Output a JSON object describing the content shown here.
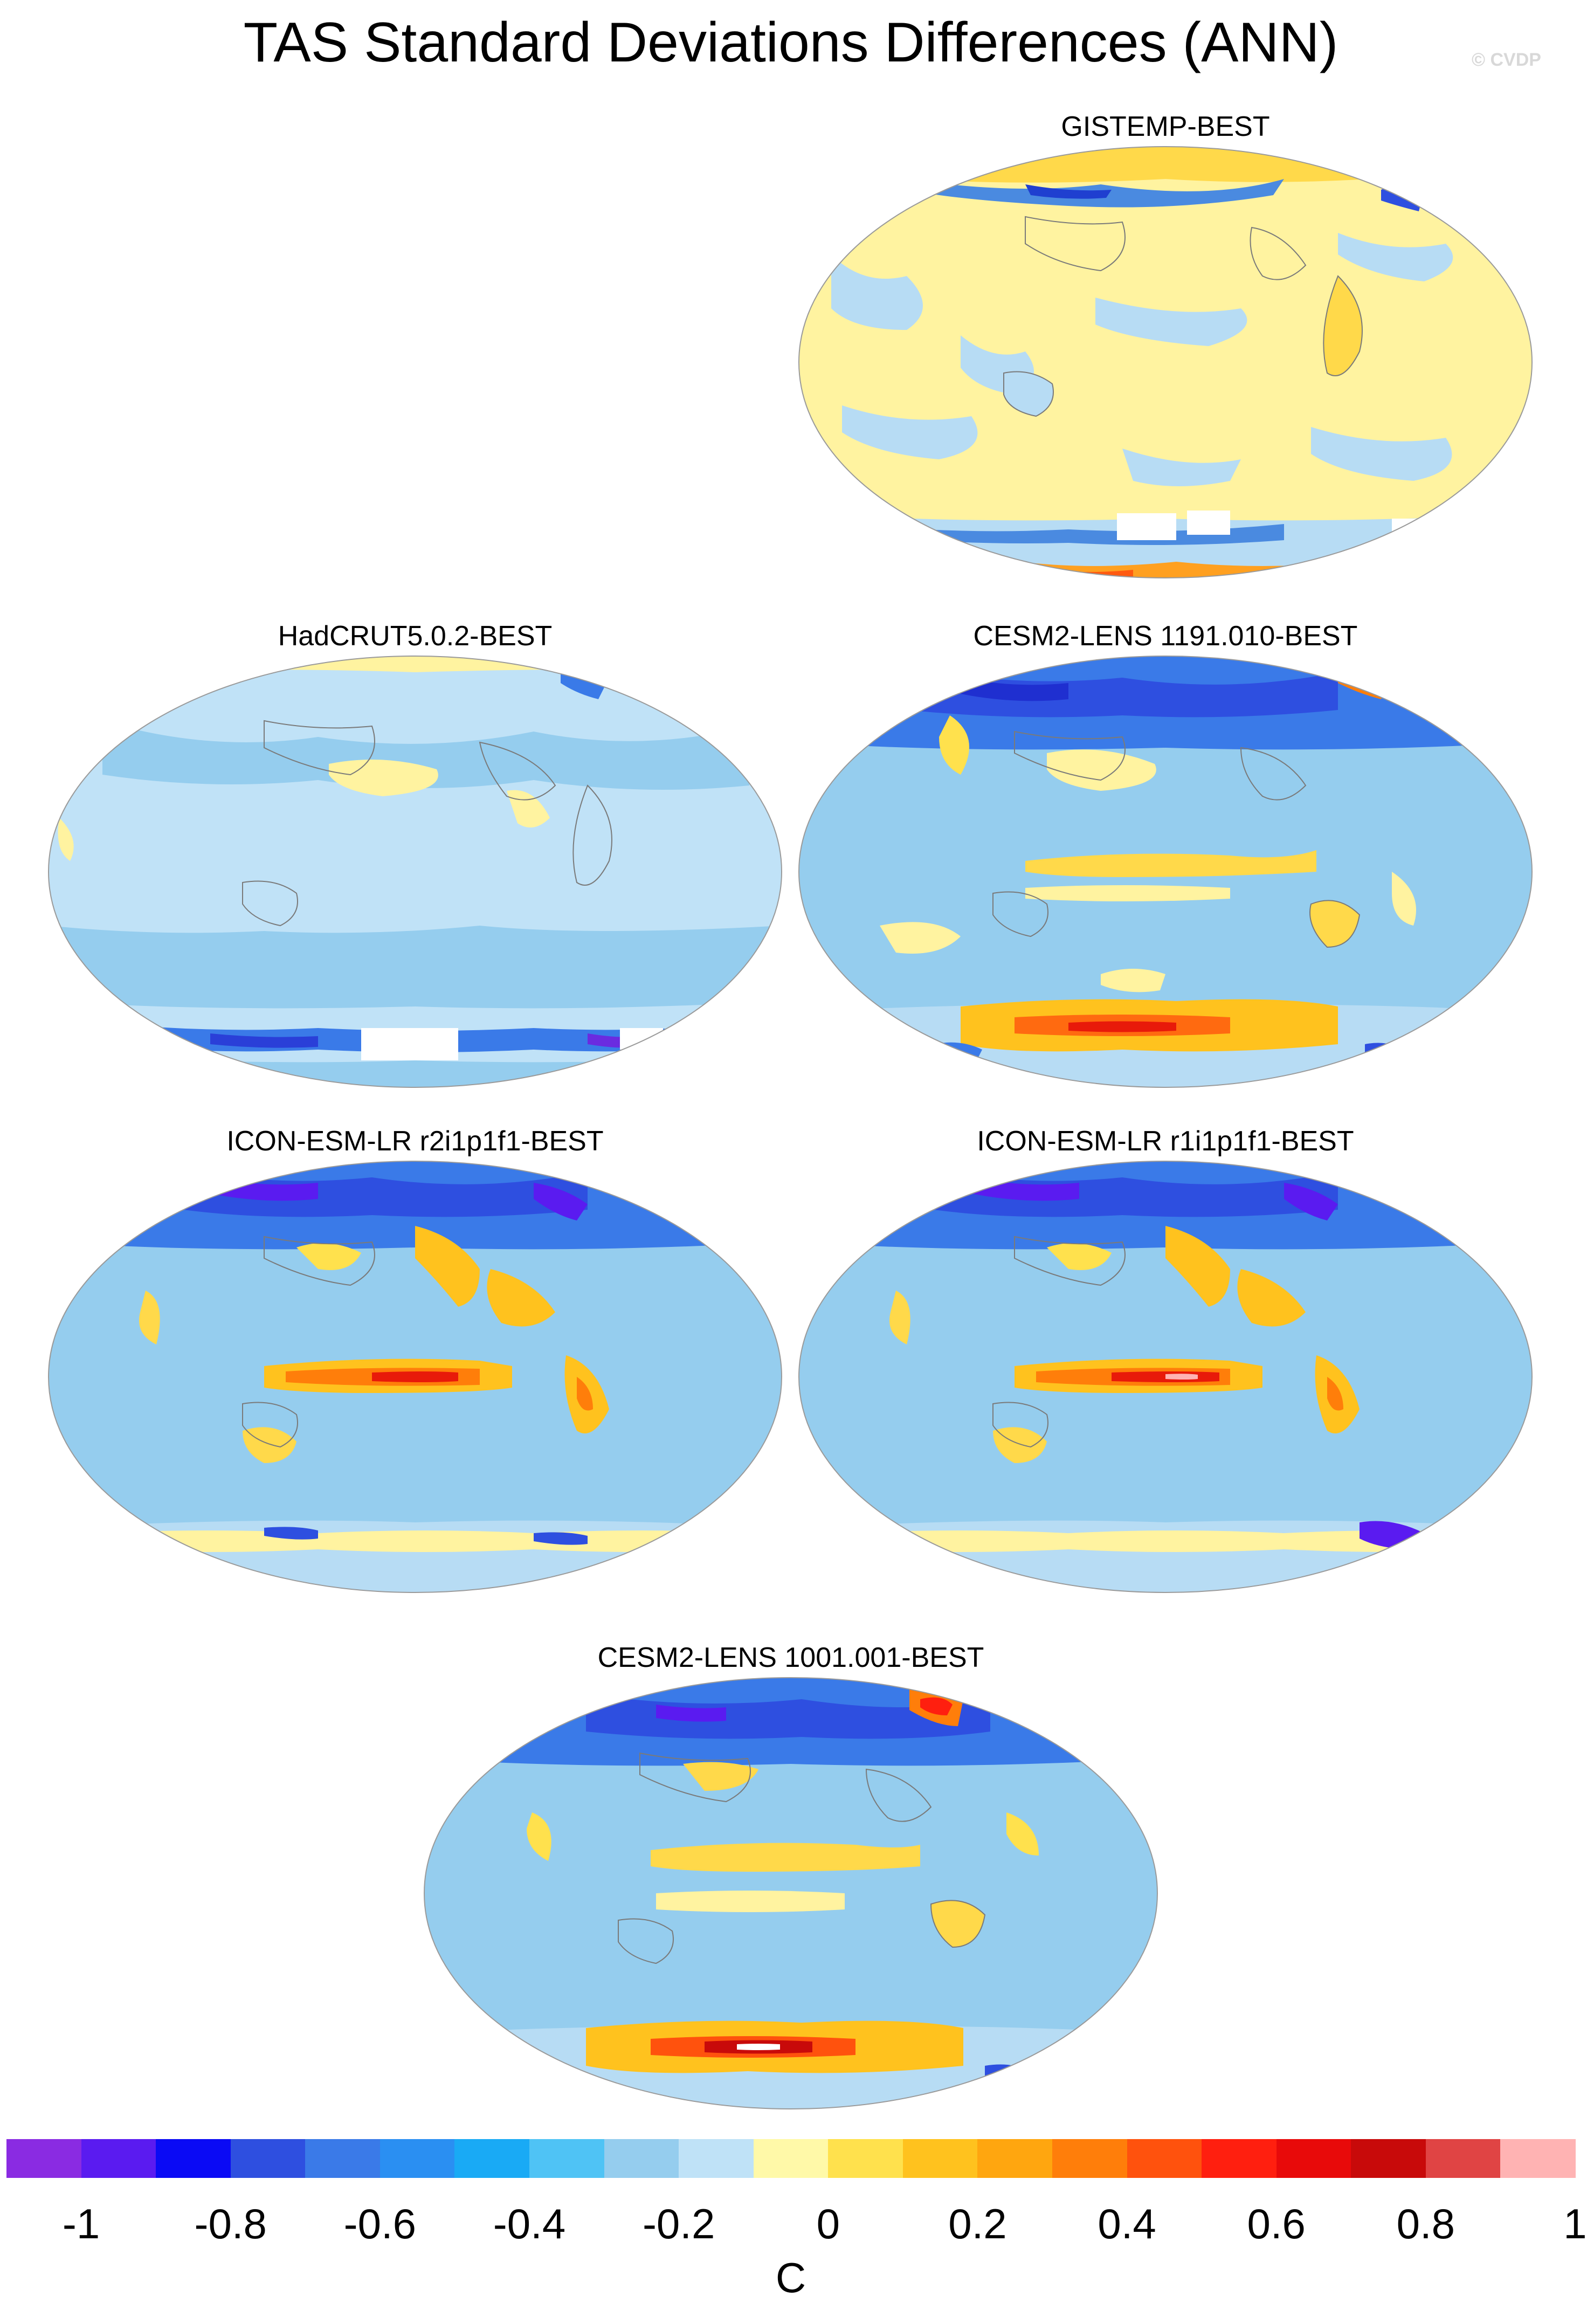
{
  "title": "TAS Standard Deviations Differences (ANN)",
  "copyright": "© CVDP",
  "colors": {
    "background_anomaly": "#b3dbf5",
    "land_outline": "#7a7a7a"
  },
  "panels": [
    {
      "id": "gistemp",
      "title": "GISTEMP-BEST"
    },
    {
      "id": "hadcrut",
      "title": "HadCRUT5.0.2-BEST"
    },
    {
      "id": "cesm1191",
      "title": "CESM2-LENS 1191.010-BEST"
    },
    {
      "id": "icon-r2",
      "title": "ICON-ESM-LR r2i1p1f1-BEST"
    },
    {
      "id": "icon-r1",
      "title": "ICON-ESM-LR r1i1p1f1-BEST"
    },
    {
      "id": "cesm1001",
      "title": "CESM2-LENS 1001.001-BEST"
    }
  ],
  "colorbar": {
    "unit": "C",
    "tick_labels": [
      "-1",
      "-0.8",
      "-0.6",
      "-0.4",
      "-0.2",
      "0",
      "0.2",
      "0.4",
      "0.6",
      "0.8",
      "1"
    ],
    "colors": [
      "#8a2be2",
      "#5a1bf0",
      "#0a0af5",
      "#2e4fe0",
      "#3a7ae8",
      "#2a8ff2",
      "#19aaf5",
      "#4fc3f5",
      "#95cdee",
      "#bfe2f7",
      "#fff9a8",
      "#ffe14d",
      "#ffc21e",
      "#ffa60f",
      "#ff7e0a",
      "#ff520d",
      "#ff1f0f",
      "#e80a0a",
      "#c80a0a",
      "#e04444",
      "#ffb3b3"
    ]
  }
}
